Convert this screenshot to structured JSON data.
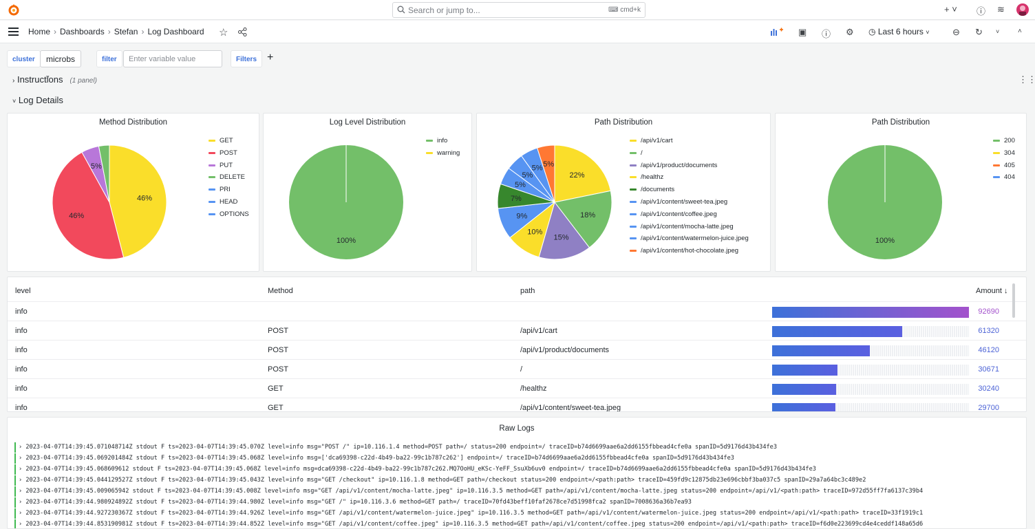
{
  "topbar": {
    "search_placeholder": "Search or jump to...",
    "search_shortcut": "cmd+k",
    "plus_label": "+ ˅",
    "help_icon": "help-icon",
    "rss_icon": "rss-icon"
  },
  "breadcrumb": [
    "Home",
    "Dashboards",
    "Stefan",
    "Log Dashboard"
  ],
  "nav": {
    "time_range": "Last 6 hours"
  },
  "variables": {
    "cluster_label": "cluster",
    "cluster_value": "microbs",
    "filter_label": "filter",
    "filter_placeholder": "Enter variable value",
    "filters_label": "Filters",
    "add_label": "+"
  },
  "rows": {
    "instructions_title": "Instructions",
    "instructions_sub": "(1 panel)",
    "details_title": "Log Details"
  },
  "colors": {
    "green": "#73bf69",
    "yellow": "#fade2a",
    "red": "#f2495c",
    "purple": "#b877d9",
    "blue": "#5794f2",
    "orange": "#ff7833",
    "darkgreen": "#37872d",
    "purple2": "#8f80c4"
  },
  "panels": {
    "method": {
      "title": "Method Distribution",
      "legend": [
        "GET",
        "POST",
        "PUT",
        "DELETE",
        "PRI",
        "HEAD",
        "OPTIONS"
      ],
      "slice_labels": [
        "46%",
        "46%",
        "5%"
      ]
    },
    "level": {
      "title": "Log Level Distribution",
      "legend": [
        "info",
        "warning"
      ],
      "slice_labels": [
        "100%"
      ]
    },
    "path": {
      "title": "Path Distribution",
      "legend": [
        "/api/v1/cart",
        "/",
        "/api/v1/product/documents",
        "/healthz",
        "/documents",
        "/api/v1/content/sweet-tea.jpeg",
        "/api/v1/content/coffee.jpeg",
        "/api/v1/content/mocha-latte.jpeg",
        "/api/v1/content/watermelon-juice.jpeg",
        "/api/v1/content/hot-chocolate.jpeg"
      ],
      "slice_labels": [
        "22%",
        "18%",
        "15%",
        "10%",
        "9%",
        "7%",
        "5%",
        "5%",
        "5%",
        "5%"
      ]
    },
    "status": {
      "title": "Path Distribution",
      "legend": [
        "200",
        "304",
        "405",
        "404"
      ],
      "slice_labels": [
        "100%"
      ]
    }
  },
  "chart_data": [
    {
      "type": "pie",
      "title": "Method Distribution",
      "categories": [
        "GET",
        "POST",
        "PUT",
        "DELETE",
        "PRI",
        "HEAD",
        "OPTIONS"
      ],
      "values": [
        46,
        46,
        5,
        3,
        0,
        0,
        0
      ],
      "legend": "right"
    },
    {
      "type": "pie",
      "title": "Log Level Distribution",
      "categories": [
        "info",
        "warning"
      ],
      "values": [
        100,
        0
      ],
      "legend": "right"
    },
    {
      "type": "pie",
      "title": "Path Distribution",
      "categories": [
        "/api/v1/cart",
        "/",
        "/api/v1/product/documents",
        "/healthz",
        "/documents",
        "/api/v1/content/sweet-tea.jpeg",
        "/api/v1/content/coffee.jpeg",
        "/api/v1/content/mocha-latte.jpeg",
        "/api/v1/content/watermelon-juice.jpeg",
        "/api/v1/content/hot-chocolate.jpeg"
      ],
      "values": [
        22,
        18,
        15,
        10,
        9,
        7,
        5,
        5,
        5,
        5
      ],
      "legend": "right"
    },
    {
      "type": "pie",
      "title": "Path Distribution",
      "categories": [
        "200",
        "304",
        "405",
        "404"
      ],
      "values": [
        100,
        0,
        0,
        0
      ],
      "legend": "right"
    }
  ],
  "table": {
    "headers": [
      "level",
      "Method",
      "path",
      "Amount"
    ],
    "sort_icon": "arrow-down-icon",
    "max": 92690,
    "rows": [
      {
        "level": "info",
        "method": "",
        "path": "",
        "amount": "92690",
        "value": 92690
      },
      {
        "level": "info",
        "method": "POST",
        "path": "/api/v1/cart",
        "amount": "61320",
        "value": 61320
      },
      {
        "level": "info",
        "method": "POST",
        "path": "/api/v1/product/documents",
        "amount": "46120",
        "value": 46120
      },
      {
        "level": "info",
        "method": "POST",
        "path": "/",
        "amount": "30671",
        "value": 30671
      },
      {
        "level": "info",
        "method": "GET",
        "path": "/healthz",
        "amount": "30240",
        "value": 30240
      },
      {
        "level": "info",
        "method": "GET",
        "path": "/api/v1/content/sweet-tea.jpeg",
        "amount": "29700",
        "value": 29700
      }
    ]
  },
  "logs": {
    "title": "Raw Logs",
    "lines": [
      "› 2023-04-07T14:39:45.071048714Z stdout F ts=2023-04-07T14:39:45.070Z level=info msg=\"POST /\" ip=10.116.1.4 method=POST path=/ status=200 endpoint=/ traceID=b74d6699aae6a2dd6155fbbead4cfe0a spanID=5d9176d43b434fe3",
      "› 2023-04-07T14:39:45.069201484Z stdout F ts=2023-04-07T14:39:45.068Z level=info msg=['dca69398-c22d-4b49-ba22-99c1b787c262'] endpoint=/ traceID=b74d6699aae6a2dd6155fbbead4cfe0a spanID=5d9176d43b434fe3",
      "› 2023-04-07T14:39:45.068609612 stdout F ts=2023-04-07T14:39:45.068Z level=info msg=dca69398-c22d-4b49-ba22-99c1b787c262.MQ7OoHU_eKSc-YeFF_SsuXb6uv0 endpoint=/ traceID=b74d6699aae6a2dd6155fbbead4cfe0a spanID=5d9176d43b434fe3",
      "› 2023-04-07T14:39:45.044129527Z stdout F ts=2023-04-07T14:39:45.043Z level=info msg=\"GET /checkout\" ip=10.116.1.8 method=GET path=/checkout status=200 endpoint=/<path:path> traceID=459fd9c12875db23e696cbbf3ba037c5 spanID=29a7a64bc3c489e2",
      "› 2023-04-07T14:39:45.009065942 stdout F ts=2023-04-07T14:39:45.008Z level=info msg=\"GET /api/v1/content/mocha-latte.jpeg\" ip=10.116.3.5 method=GET path=/api/v1/content/mocha-latte.jpeg status=200 endpoint=/api/v1/<path:path> traceID=972d55ff7fa6137c39b4",
      "› 2023-04-07T14:39:44.980924892Z stdout F ts=2023-04-07T14:39:44.980Z level=info msg=\"GET /\" ip=10.116.3.6 method=GET path=/ traceID=70fd43beff10faf2678ce7d51998fca2 spanID=7008636a36b7ea93",
      "› 2023-04-07T14:39:44.927230367Z stdout F ts=2023-04-07T14:39:44.926Z level=info msg=\"GET /api/v1/content/watermelon-juice.jpeg\" ip=10.116.3.5 method=GET path=/api/v1/content/watermelon-juice.jpeg status=200 endpoint=/api/v1/<path:path> traceID=33f1919c1",
      "› 2023-04-07T14:39:44.853190981Z stdout F ts=2023-04-07T14:39:44.852Z level=info msg=\"GET /api/v1/content/coffee.jpeg\" ip=10.116.3.5 method=GET path=/api/v1/content/coffee.jpeg status=200 endpoint=/api/v1/<path:path> traceID=f6d0e223699cd4e4ceddf148a65d6"
    ]
  }
}
